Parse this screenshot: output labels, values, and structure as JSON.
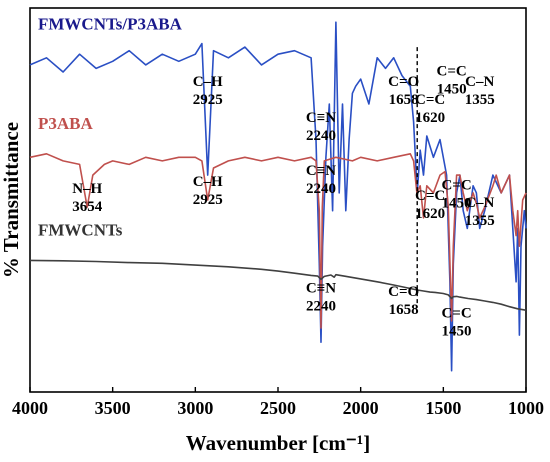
{
  "chart_data": {
    "type": "line",
    "xlabel": "Wavenumber [cm⁻¹]",
    "ylabel": "% Transmittance",
    "xlim": [
      4000,
      1000
    ],
    "x_reversed": true,
    "yticks_shown": false,
    "grid": false,
    "xticks": [
      "4000",
      "3500",
      "3000",
      "2500",
      "2000",
      "1500",
      "1000"
    ],
    "dashed_marker_x": 1658,
    "series": [
      {
        "name": "FMWCNTs/P3ABA",
        "color": "#2a4fc4",
        "points": [
          [
            4000,
            8.6
          ],
          [
            3900,
            8.8
          ],
          [
            3800,
            8.4
          ],
          [
            3700,
            8.9
          ],
          [
            3600,
            8.5
          ],
          [
            3500,
            8.7
          ],
          [
            3400,
            9.0
          ],
          [
            3300,
            8.6
          ],
          [
            3200,
            8.9
          ],
          [
            3100,
            8.7
          ],
          [
            3000,
            8.9
          ],
          [
            2960,
            9.2
          ],
          [
            2925,
            5.5
          ],
          [
            2890,
            9.0
          ],
          [
            2800,
            8.8
          ],
          [
            2700,
            9.1
          ],
          [
            2600,
            8.6
          ],
          [
            2500,
            8.9
          ],
          [
            2400,
            9.0
          ],
          [
            2300,
            8.8
          ],
          [
            2270,
            6.5
          ],
          [
            2250,
            3.0
          ],
          [
            2240,
            0.8
          ],
          [
            2230,
            3.5
          ],
          [
            2210,
            6.0
          ],
          [
            2190,
            7.5
          ],
          [
            2170,
            4.5
          ],
          [
            2150,
            9.8
          ],
          [
            2130,
            5.0
          ],
          [
            2110,
            7.5
          ],
          [
            2090,
            4.5
          ],
          [
            2070,
            6.5
          ],
          [
            2050,
            7.8
          ],
          [
            2030,
            8.0
          ],
          [
            2000,
            8.2
          ],
          [
            1950,
            7.5
          ],
          [
            1900,
            8.8
          ],
          [
            1850,
            8.5
          ],
          [
            1800,
            8.8
          ],
          [
            1750,
            8.3
          ],
          [
            1700,
            8.0
          ],
          [
            1680,
            7.0
          ],
          [
            1658,
            5.0
          ],
          [
            1640,
            6.2
          ],
          [
            1620,
            5.5
          ],
          [
            1600,
            6.6
          ],
          [
            1560,
            6.0
          ],
          [
            1520,
            6.5
          ],
          [
            1480,
            5.5
          ],
          [
            1460,
            2.5
          ],
          [
            1450,
            0.0
          ],
          [
            1440,
            3.0
          ],
          [
            1420,
            5.0
          ],
          [
            1400,
            5.5
          ],
          [
            1380,
            4.5
          ],
          [
            1355,
            4.0
          ],
          [
            1320,
            5.2
          ],
          [
            1300,
            5.0
          ],
          [
            1280,
            4.0
          ],
          [
            1250,
            4.5
          ],
          [
            1200,
            5.5
          ],
          [
            1150,
            5.0
          ],
          [
            1100,
            5.5
          ],
          [
            1080,
            4.0
          ],
          [
            1060,
            2.5
          ],
          [
            1050,
            4.0
          ],
          [
            1040,
            1.0
          ],
          [
            1030,
            3.5
          ],
          [
            1010,
            4.5
          ],
          [
            1000,
            4.0
          ]
        ]
      },
      {
        "name": "P3ABA",
        "color": "#c0504d",
        "points": [
          [
            4000,
            6.0
          ],
          [
            3900,
            6.1
          ],
          [
            3800,
            5.9
          ],
          [
            3700,
            5.8
          ],
          [
            3654,
            4.6
          ],
          [
            3620,
            5.5
          ],
          [
            3550,
            5.8
          ],
          [
            3500,
            5.9
          ],
          [
            3400,
            5.8
          ],
          [
            3300,
            6.0
          ],
          [
            3200,
            5.9
          ],
          [
            3100,
            6.0
          ],
          [
            3000,
            6.0
          ],
          [
            2960,
            5.9
          ],
          [
            2925,
            4.8
          ],
          [
            2890,
            5.7
          ],
          [
            2800,
            5.9
          ],
          [
            2700,
            6.0
          ],
          [
            2600,
            5.9
          ],
          [
            2500,
            6.0
          ],
          [
            2400,
            5.9
          ],
          [
            2300,
            6.0
          ],
          [
            2270,
            5.9
          ],
          [
            2250,
            4.5
          ],
          [
            2240,
            1.2
          ],
          [
            2232,
            4.6
          ],
          [
            2220,
            5.9
          ],
          [
            2150,
            6.0
          ],
          [
            2050,
            5.9
          ],
          [
            2000,
            6.0
          ],
          [
            1900,
            5.9
          ],
          [
            1800,
            6.0
          ],
          [
            1700,
            6.1
          ],
          [
            1680,
            5.9
          ],
          [
            1660,
            5.0
          ],
          [
            1640,
            5.2
          ],
          [
            1620,
            4.3
          ],
          [
            1600,
            5.2
          ],
          [
            1560,
            5.0
          ],
          [
            1520,
            5.5
          ],
          [
            1490,
            5.6
          ],
          [
            1470,
            4.6
          ],
          [
            1450,
            1.4
          ],
          [
            1440,
            3.5
          ],
          [
            1420,
            5.5
          ],
          [
            1400,
            5.5
          ],
          [
            1380,
            5.0
          ],
          [
            1355,
            4.5
          ],
          [
            1320,
            5.0
          ],
          [
            1300,
            4.7
          ],
          [
            1280,
            4.3
          ],
          [
            1250,
            4.6
          ],
          [
            1200,
            5.2
          ],
          [
            1180,
            5.5
          ],
          [
            1150,
            5.0
          ],
          [
            1100,
            5.5
          ],
          [
            1080,
            4.5
          ],
          [
            1060,
            3.8
          ],
          [
            1050,
            4.5
          ],
          [
            1040,
            3.5
          ],
          [
            1020,
            4.8
          ],
          [
            1000,
            5.0
          ]
        ]
      },
      {
        "name": "FMWCNTs",
        "color": "#404040",
        "points": [
          [
            4000,
            3.1
          ],
          [
            3800,
            3.09
          ],
          [
            3600,
            3.07
          ],
          [
            3400,
            3.04
          ],
          [
            3200,
            3.02
          ],
          [
            3000,
            2.97
          ],
          [
            2800,
            2.92
          ],
          [
            2600,
            2.85
          ],
          [
            2500,
            2.8
          ],
          [
            2400,
            2.74
          ],
          [
            2300,
            2.68
          ],
          [
            2260,
            2.66
          ],
          [
            2240,
            2.57
          ],
          [
            2220,
            2.65
          ],
          [
            2180,
            2.69
          ],
          [
            2160,
            2.63
          ],
          [
            2150,
            2.7
          ],
          [
            2100,
            2.66
          ],
          [
            2000,
            2.58
          ],
          [
            1900,
            2.5
          ],
          [
            1800,
            2.41
          ],
          [
            1700,
            2.31
          ],
          [
            1658,
            2.27
          ],
          [
            1620,
            2.24
          ],
          [
            1580,
            2.21
          ],
          [
            1550,
            2.2
          ],
          [
            1500,
            2.17
          ],
          [
            1470,
            2.13
          ],
          [
            1450,
            2.03
          ],
          [
            1440,
            2.08
          ],
          [
            1420,
            2.09
          ],
          [
            1400,
            2.07
          ],
          [
            1350,
            2.03
          ],
          [
            1300,
            2.0
          ],
          [
            1250,
            1.96
          ],
          [
            1200,
            1.92
          ],
          [
            1150,
            1.87
          ],
          [
            1100,
            1.8
          ],
          [
            1050,
            1.74
          ],
          [
            1000,
            1.7
          ]
        ]
      }
    ],
    "series_labels": [
      {
        "text": "FMWCNTs/P3ABA",
        "x": 4000,
        "y": 9.6,
        "color": "#1a1a8c"
      },
      {
        "text": "P3ABA",
        "x": 4000,
        "y": 6.8,
        "color": "#c0504d"
      },
      {
        "text": "FMWCNTs",
        "x": 4000,
        "y": 3.8,
        "color": "#333333"
      }
    ],
    "annotations": [
      {
        "lines": [
          "C–H",
          "2925"
        ],
        "x": 2925,
        "y": 8.0
      },
      {
        "lines": [
          "C≡N",
          "2240"
        ],
        "x": 2240,
        "y": 7.0
      },
      {
        "lines": [
          "C=O",
          "1658"
        ],
        "x": 1740,
        "y": 8.0
      },
      {
        "lines": [
          "C=C",
          "1620"
        ],
        "x": 1580,
        "y": 7.5
      },
      {
        "lines": [
          "C=C",
          "1450"
        ],
        "x": 1450,
        "y": 8.3
      },
      {
        "lines": [
          "C–N",
          "1355"
        ],
        "x": 1280,
        "y": 8.0
      },
      {
        "lines": [
          "N–H",
          "3654"
        ],
        "x": 3654,
        "y": 5.0
      },
      {
        "lines": [
          "C–H",
          "2925"
        ],
        "x": 2925,
        "y": 5.2
      },
      {
        "lines": [
          "C≡N",
          "2240"
        ],
        "x": 2240,
        "y": 5.5
      },
      {
        "lines": [
          "C=C",
          "1620"
        ],
        "x": 1580,
        "y": 4.8
      },
      {
        "lines": [
          "C=C",
          "1450"
        ],
        "x": 1420,
        "y": 5.1
      },
      {
        "lines": [
          "C–N",
          "1355"
        ],
        "x": 1280,
        "y": 4.6
      },
      {
        "lines": [
          "C≡N",
          "2240"
        ],
        "x": 2240,
        "y": 2.2
      },
      {
        "lines": [
          "C=O",
          "1658"
        ],
        "x": 1740,
        "y": 2.1
      },
      {
        "lines": [
          "C=C",
          "1450"
        ],
        "x": 1420,
        "y": 1.5
      }
    ]
  }
}
